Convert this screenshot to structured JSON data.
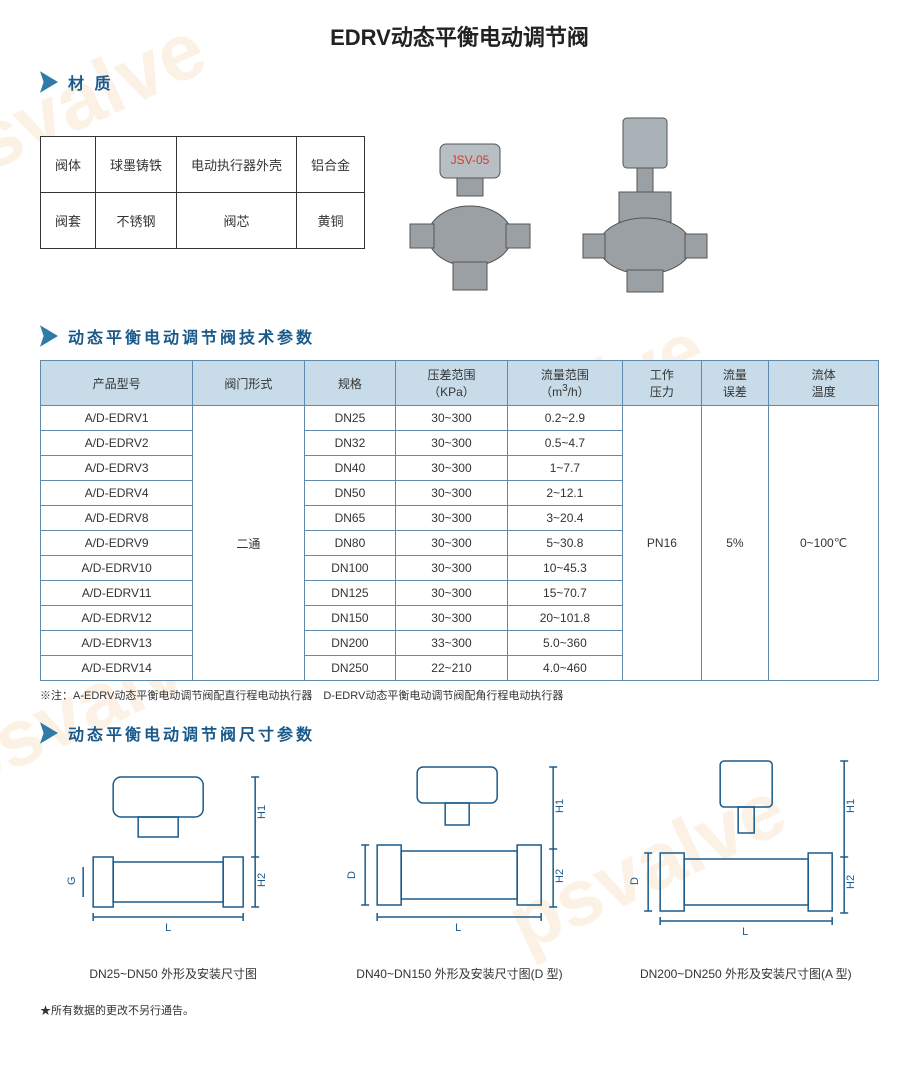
{
  "page": {
    "title": "EDRV动态平衡电动调节阀",
    "background_color": "#ffffff",
    "watermark_text": "psvalve",
    "watermark_color": "rgba(245,215,180,0.35)"
  },
  "sections": {
    "material": {
      "heading": "材 质",
      "wedge_color": "#2f7aa8"
    },
    "spec": {
      "heading": "动态平衡电动调节阀技术参数",
      "wedge_color": "#2f7aa8"
    },
    "dims": {
      "heading": "动态平衡电动调节阀尺寸参数",
      "wedge_color": "#2f7aa8"
    }
  },
  "material_table": {
    "border_color": "#333333",
    "rows": [
      [
        {
          "label": "阀体"
        },
        {
          "label": "球墨铸铁"
        },
        {
          "label": "电动执行器外壳"
        },
        {
          "label": "铝合金"
        }
      ],
      [
        {
          "label": "阀套"
        },
        {
          "label": "不锈钢"
        },
        {
          "label": "阀芯"
        },
        {
          "label": "黄铜"
        }
      ]
    ]
  },
  "product_images": {
    "left_label": "JSV-05",
    "label_color": "#d83a2a",
    "body_color": "#9aa0a4",
    "actuator_color": "#a9b2b7"
  },
  "spec_table": {
    "header_bg": "#c7dce8",
    "border_color": "#5f8aab",
    "columns": [
      "产品型号",
      "阀门形式",
      "规格",
      "压差范围\n（KPa）",
      "流量范围\n（m³/h）",
      "工作\n压力",
      "流量\n误差",
      "流体\n温度"
    ],
    "valve_type": "二通",
    "pressure": "PN16",
    "flow_error": "5%",
    "fluid_temp": "0~100℃",
    "rows": [
      {
        "model": "A/D-EDRV1",
        "spec": "DN25",
        "dp": "30~300",
        "flow": "0.2~2.9"
      },
      {
        "model": "A/D-EDRV2",
        "spec": "DN32",
        "dp": "30~300",
        "flow": "0.5~4.7"
      },
      {
        "model": "A/D-EDRV3",
        "spec": "DN40",
        "dp": "30~300",
        "flow": "1~7.7"
      },
      {
        "model": "A/D-EDRV4",
        "spec": "DN50",
        "dp": "30~300",
        "flow": "2~12.1"
      },
      {
        "model": "A/D-EDRV8",
        "spec": "DN65",
        "dp": "30~300",
        "flow": "3~20.4"
      },
      {
        "model": "A/D-EDRV9",
        "spec": "DN80",
        "dp": "30~300",
        "flow": "5~30.8"
      },
      {
        "model": "A/D-EDRV10",
        "spec": "DN100",
        "dp": "30~300",
        "flow": "10~45.3"
      },
      {
        "model": "A/D-EDRV11",
        "spec": "DN125",
        "dp": "30~300",
        "flow": "15~70.7"
      },
      {
        "model": "A/D-EDRV12",
        "spec": "DN150",
        "dp": "30~300",
        "flow": "20~101.8"
      },
      {
        "model": "A/D-EDRV13",
        "spec": "DN200",
        "dp": "33~300",
        "flow": "5.0~360"
      },
      {
        "model": "A/D-EDRV14",
        "spec": "DN250",
        "dp": "22~210",
        "flow": "4.0~460"
      }
    ],
    "note": "※注：A-EDRV动态平衡电动调节阀配直行程电动执行器　D-EDRV动态平衡电动调节阀配角行程电动执行器"
  },
  "diagrams": {
    "line_color": "#1a5a8a",
    "label_font_size": 11,
    "items": [
      {
        "caption": "DN25~DN50 外形及安装尺寸图",
        "dims_shown": [
          "G",
          "L",
          "H1",
          "H2"
        ]
      },
      {
        "caption": "DN40~DN150 外形及安装尺寸图(D 型)",
        "dims_shown": [
          "D",
          "L",
          "H1",
          "H2"
        ]
      },
      {
        "caption": "DN200~DN250 外形及安装尺寸图(A 型)",
        "dims_shown": [
          "D",
          "L",
          "H1",
          "H2"
        ]
      }
    ]
  },
  "footer_note": "★所有数据的更改不另行通告。"
}
